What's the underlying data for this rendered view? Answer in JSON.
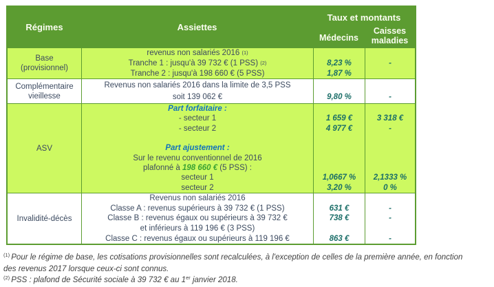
{
  "colors": {
    "header_green": "#5C9C31",
    "row_light_green": "#CDF961",
    "body_text_navy": "#3C4A60",
    "value_teal": "#1B6E68",
    "accent_blue": "#1173BC",
    "accent_green": "#3AA233"
  },
  "table": {
    "header": {
      "regimes": "Régimes",
      "assiettes": "Assiettes",
      "taux_et_montants": "Taux et montants",
      "medecins": "Médecins",
      "caisses_maladies": "Caisses maladies"
    },
    "rows": [
      {
        "id": "base",
        "shade": "green",
        "regime": [
          "Base",
          "(provisionnel)"
        ],
        "lines": [
          {
            "a": [
              {
                "t": "revenus non salariés 2016 "
              },
              {
                "t": "(1)",
                "sup": true
              }
            ],
            "m": "",
            "c": ""
          },
          {
            "a": [
              {
                "t": "Tranche 1 : jusqu'à 39 732 € (1 PSS) "
              },
              {
                "t": "(2)",
                "sup": true
              }
            ],
            "m": "8,23 %",
            "c": "-"
          },
          {
            "a": [
              {
                "t": "Tranche 2 : jusqu'à 198 660 € (5 PSS)"
              }
            ],
            "m": "1,87 %",
            "c": ""
          }
        ]
      },
      {
        "id": "complementaire",
        "shade": "white",
        "regime": [
          "Complémentaire",
          "vieillesse"
        ],
        "lines": [
          {
            "a": [
              {
                "t": "Revenus non salariés 2016 dans la limite de 3,5 PSS"
              }
            ],
            "m": "",
            "c": ""
          },
          {
            "a": [
              {
                "t": "soit 139 062 €"
              }
            ],
            "m": "9,80 %",
            "c": "-"
          }
        ]
      },
      {
        "id": "asv",
        "shade": "green",
        "regime": [
          "ASV"
        ],
        "lines": [
          {
            "a": [
              {
                "t": "Part forfaitaire :",
                "style": "blue"
              }
            ],
            "m": "",
            "c": ""
          },
          {
            "a": [
              {
                "t": "- secteur 1"
              }
            ],
            "m": "1 659 €",
            "c": "3 318 €"
          },
          {
            "a": [
              {
                "t": "- secteur 2"
              }
            ],
            "m": "4 977 €",
            "c": "-"
          },
          {
            "a": [],
            "m": "",
            "c": ""
          },
          {
            "a": [
              {
                "t": "Part ajustement :",
                "style": "blue"
              }
            ],
            "m": "",
            "c": ""
          },
          {
            "a": [
              {
                "t": "Sur le revenu conventionnel de 2016"
              }
            ],
            "m": "",
            "c": ""
          },
          {
            "a": [
              {
                "t": "plafonné à "
              },
              {
                "t": "198 660 €",
                "style": "green"
              },
              {
                "t": " (5 PSS) :"
              }
            ],
            "m": "",
            "c": ""
          },
          {
            "a": [
              {
                "t": "secteur 1"
              }
            ],
            "m": "1,0667 %",
            "c": "2,1333 %"
          },
          {
            "a": [
              {
                "t": "secteur 2"
              }
            ],
            "m": "3,20 %",
            "c": "0 %"
          }
        ]
      },
      {
        "id": "invalidite",
        "shade": "white",
        "regime": [
          "Invalidité-décès"
        ],
        "lines": [
          {
            "a": [
              {
                "t": "Revenus non salariés 2016"
              }
            ],
            "m": "",
            "c": ""
          },
          {
            "a": [
              {
                "t": "Classe A : revenus supérieurs à 39 732 € (1 PSS)"
              }
            ],
            "m": "631 €",
            "c": "-"
          },
          {
            "a": [
              {
                "t": "Classe B : revenus égaux ou supérieurs à 39 732 €"
              }
            ],
            "m": "738 €",
            "c": "-"
          },
          {
            "a": [
              {
                "t": "et inférieurs à 119 196 € (3 PSS)"
              }
            ],
            "m": "",
            "c": ""
          },
          {
            "a": [
              {
                "t": "Classe C : revenus égaux ou supérieurs à 119 196 €"
              }
            ],
            "m": "863 €",
            "c": "-"
          }
        ]
      }
    ]
  },
  "footnotes": [
    {
      "lines": [
        [
          {
            "t": "(1) ",
            "sup": true
          },
          {
            "t": "Pour le régime de base, les cotisations provisionnelles sont recalculées, à l'exception de celles de la première année, en fonction"
          }
        ],
        [
          {
            "t": "des revenus 2017 lorsque ceux-ci sont connus."
          }
        ]
      ]
    },
    {
      "lines": [
        [
          {
            "t": "(2) ",
            "sup": true
          },
          {
            "t": "PSS : plafond de Sécurité sociale à 39 732 € au 1"
          },
          {
            "t": "er",
            "sup": true
          },
          {
            "t": " janvier 2018."
          }
        ]
      ]
    }
  ]
}
